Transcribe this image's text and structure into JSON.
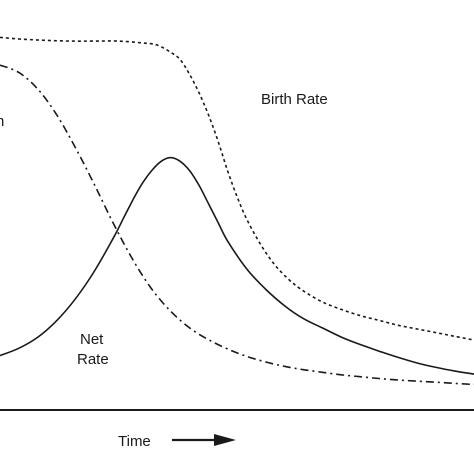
{
  "chart_data": {
    "type": "line",
    "title": "",
    "xlabel": "Time",
    "ylabel": "",
    "grid": false,
    "xlim": [
      0,
      100
    ],
    "ylim": [
      0,
      100
    ],
    "series": [
      {
        "name": "Birth Rate",
        "style": "dotted",
        "x": [
          0,
          5,
          10,
          15,
          20,
          25,
          30,
          33,
          36,
          38,
          40,
          42,
          44,
          46,
          48,
          50,
          52,
          55,
          58,
          61,
          64,
          68,
          72,
          76,
          80,
          84,
          88,
          92,
          96,
          100
        ],
        "y": [
          98,
          97.5,
          97.2,
          97,
          97,
          97,
          96.5,
          96,
          94,
          92,
          88,
          83,
          77,
          70,
          62,
          55,
          49,
          42,
          36.5,
          32.5,
          29.5,
          26.5,
          24.5,
          22.8,
          21.5,
          20.2,
          19.2,
          18.2,
          17.2,
          16.2
        ]
      },
      {
        "name": "Death Rate",
        "style": "dashdot",
        "x": [
          0,
          4,
          8,
          12,
          16,
          20,
          24,
          28,
          32,
          36,
          40,
          44,
          48,
          52,
          56,
          60,
          64,
          68,
          72,
          76,
          80,
          84,
          88,
          92,
          96,
          100
        ],
        "y": [
          90.5,
          88.5,
          84,
          77,
          68,
          58,
          47.5,
          38,
          30,
          24,
          19.5,
          16.3,
          13.8,
          11.8,
          10.3,
          9.1,
          8.2,
          7.5,
          6.8,
          6.3,
          5.8,
          5.4,
          5.1,
          4.8,
          4.5,
          4.2
        ]
      },
      {
        "name": "Net Rate",
        "style": "solid",
        "x": [
          0,
          4,
          8,
          12,
          16,
          20,
          24,
          26,
          28,
          30,
          32,
          34,
          36,
          38,
          40,
          42,
          44,
          46,
          48,
          52,
          56,
          60,
          64,
          68,
          72,
          76,
          80,
          84,
          88,
          92,
          96,
          100
        ],
        "y": [
          12,
          14,
          17,
          21.5,
          27.5,
          35,
          44,
          49,
          54,
          58.5,
          62,
          64.5,
          65.5,
          64.5,
          62,
          58,
          53,
          48,
          43,
          35.5,
          30,
          25.5,
          22,
          19.5,
          17,
          15,
          13.2,
          11.5,
          10,
          8.8,
          7.8,
          7
        ]
      }
    ],
    "annotations": [
      {
        "text": "Birth Rate",
        "series": "Birth Rate"
      },
      {
        "text": "Net\nRate",
        "series": "Net Rate"
      }
    ]
  },
  "labels": {
    "birth_rate": "Birth Rate",
    "net_line1": "Net",
    "net_line2": "Rate",
    "time": "Time",
    "edge_fragment": "n"
  }
}
